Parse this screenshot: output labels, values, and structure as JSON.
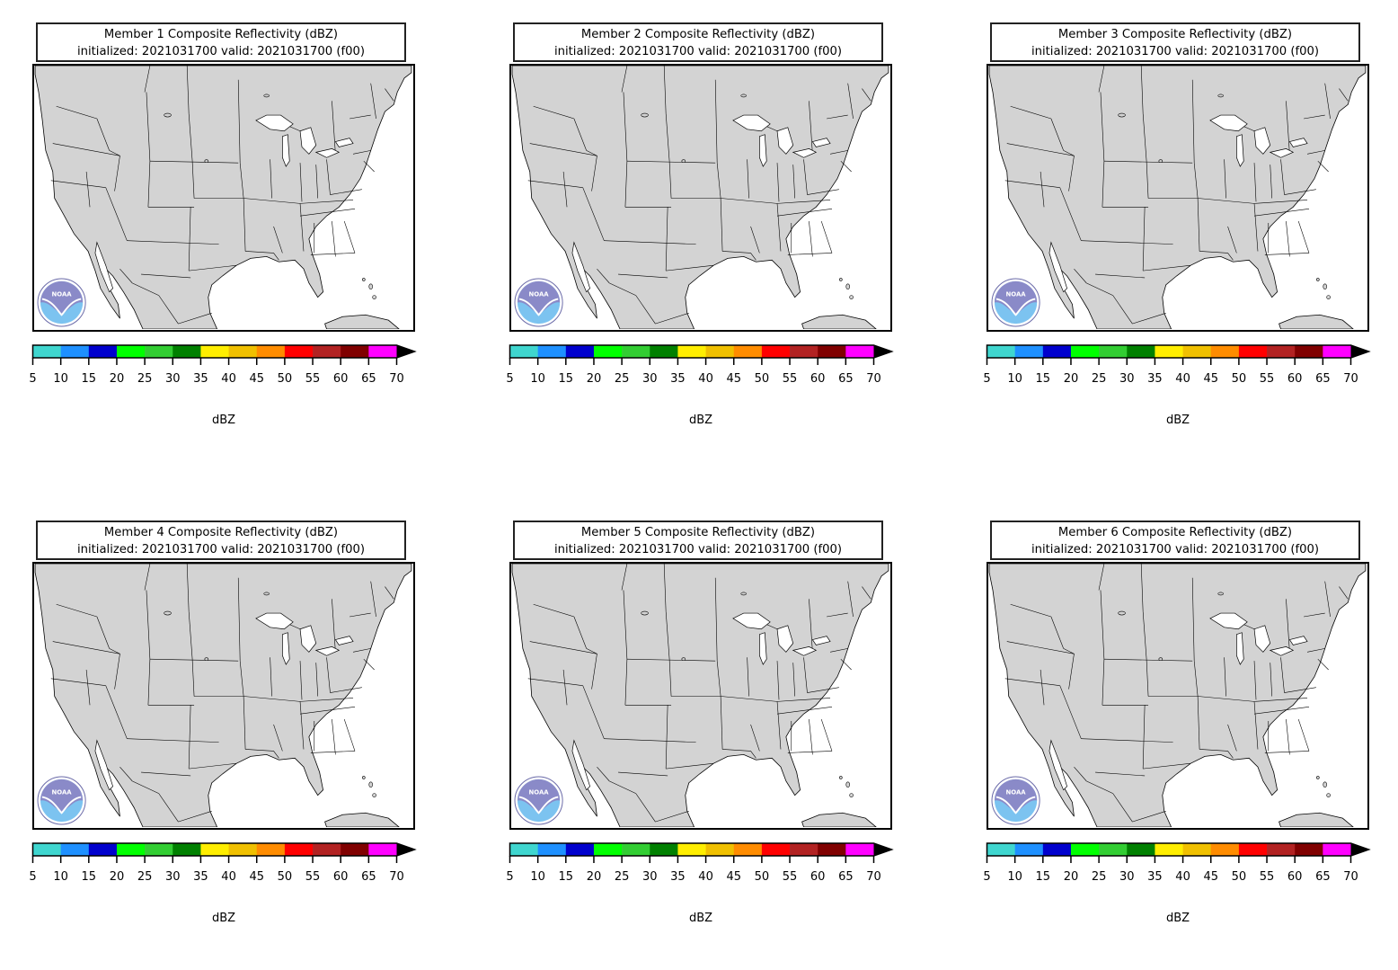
{
  "figure": {
    "panels": [
      {
        "title_line1": "Member 1 Composite Reflectivity (dBZ)",
        "title_line2": "initialized: 2021031700 valid: 2021031700 (f00)"
      },
      {
        "title_line1": "Member 2 Composite Reflectivity (dBZ)",
        "title_line2": "initialized: 2021031700 valid: 2021031700 (f00)"
      },
      {
        "title_line1": "Member 3 Composite Reflectivity (dBZ)",
        "title_line2": "initialized: 2021031700 valid: 2021031700 (f00)"
      },
      {
        "title_line1": "Member 4 Composite Reflectivity (dBZ)",
        "title_line2": "initialized: 2021031700 valid: 2021031700 (f00)"
      },
      {
        "title_line1": "Member 5 Composite Reflectivity (dBZ)",
        "title_line2": "initialized: 2021031700 valid: 2021031700 (f00)"
      },
      {
        "title_line1": "Member 6 Composite Reflectivity (dBZ)",
        "title_line2": "initialized: 2021031700 valid: 2021031700 (f00)"
      }
    ],
    "colorbar": {
      "unit_label": "dBZ",
      "ticks": [
        "5",
        "10",
        "15",
        "20",
        "25",
        "30",
        "35",
        "40",
        "45",
        "50",
        "55",
        "60",
        "65",
        "70"
      ],
      "colors": [
        "#3fd6cf",
        "#1e90ff",
        "#0000cd",
        "#00ff00",
        "#32cd32",
        "#008000",
        "#ffee00",
        "#f0c000",
        "#ff8c00",
        "#ff0000",
        "#b22222",
        "#800000",
        "#ff00ff"
      ],
      "extend": "max"
    },
    "map_colors": {
      "land": "#d3d3d3",
      "water": "#ffffff",
      "borders": "#000000"
    },
    "logo": {
      "text": "NOAA",
      "icon": "noaa-logo-icon"
    }
  }
}
